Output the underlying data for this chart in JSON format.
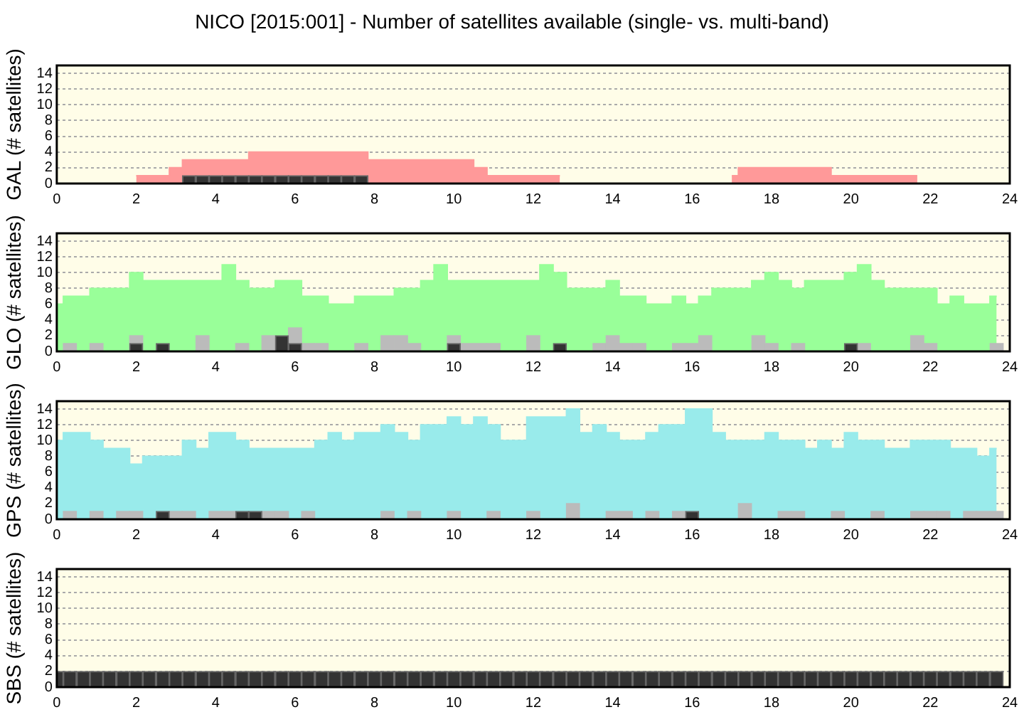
{
  "chart_data": [
    {
      "type": "bar",
      "title": "NICO [2015:001] - Number of satellites available (single- vs. multi-band)",
      "ylabel": "GAL (# satellites)",
      "xlim": [
        0,
        24
      ],
      "xticks": [
        0,
        2,
        4,
        6,
        8,
        10,
        12,
        14,
        16,
        18,
        20,
        22,
        24
      ],
      "ylim": [
        0,
        15
      ],
      "yticks": [
        0,
        2,
        4,
        6,
        8,
        10,
        12,
        14
      ],
      "grid": "y",
      "series": [
        {
          "type": "area",
          "color": "#ff9999",
          "x": [
            2,
            2.33,
            2.67,
            3,
            3.33,
            3.67,
            4,
            4.33,
            4.67,
            5,
            5.33,
            5.67,
            6,
            6.33,
            6.67,
            7,
            7.33,
            7.67,
            8,
            8.33,
            8.67,
            9,
            9.33,
            9.67,
            10,
            10.33,
            10.67,
            11,
            11.33,
            11.67,
            12,
            12.33,
            12.67
          ],
          "values": [
            1,
            1,
            1,
            2,
            3,
            3,
            3,
            3,
            3,
            4,
            4,
            4,
            4,
            4,
            4,
            4,
            4,
            4,
            3,
            3,
            3,
            3,
            3,
            3,
            3,
            3,
            2,
            1,
            1,
            1,
            1,
            1,
            1
          ]
        },
        {
          "type": "area",
          "color": "#ff9999",
          "x": [
            17,
            17.33,
            17.67,
            18,
            18.33,
            18.67,
            19,
            19.33,
            19.67,
            20,
            20.33,
            20.67,
            21,
            21.33,
            21.67
          ],
          "values": [
            1,
            2,
            2,
            2,
            2,
            2,
            2,
            2,
            1,
            1,
            1,
            1,
            1,
            1,
            1
          ]
        },
        {
          "color": "#333333",
          "x": [
            3.33,
            3.67,
            4,
            4.33,
            4.67,
            5,
            5.33,
            5.67,
            6,
            6.33,
            6.67,
            7,
            7.33,
            7.67
          ],
          "values": [
            1,
            1,
            1,
            1,
            1,
            1,
            1,
            1,
            1,
            1,
            1,
            1,
            1,
            1
          ]
        }
      ]
    },
    {
      "type": "bar",
      "ylabel": "GLO (# satellites)",
      "xlim": [
        0,
        24
      ],
      "xticks": [
        0,
        2,
        4,
        6,
        8,
        10,
        12,
        14,
        16,
        18,
        20,
        22,
        24
      ],
      "ylim": [
        0,
        15
      ],
      "yticks": [
        0,
        2,
        4,
        6,
        8,
        10,
        12,
        14
      ],
      "grid": "y",
      "x": [
        0,
        0.33,
        0.67,
        1,
        1.33,
        1.67,
        2,
        2.33,
        2.67,
        3,
        3.33,
        3.67,
        4,
        4.33,
        4.67,
        5,
        5.33,
        5.67,
        6,
        6.33,
        6.67,
        7,
        7.33,
        7.67,
        8,
        8.33,
        8.67,
        9,
        9.33,
        9.67,
        10,
        10.33,
        10.67,
        11,
        11.33,
        11.67,
        12,
        12.33,
        12.67,
        13,
        13.33,
        13.67,
        14,
        14.33,
        14.67,
        15,
        15.33,
        15.67,
        16,
        16.33,
        16.67,
        17,
        17.33,
        17.67,
        18,
        18.33,
        18.67,
        19,
        19.33,
        19.67,
        20,
        20.33,
        20.67,
        21,
        21.33,
        21.67,
        22,
        22.33,
        22.67,
        23,
        23.33,
        23.67
      ],
      "series": [
        {
          "type": "area",
          "color": "#99ff99",
          "values": [
            6,
            7,
            7,
            8,
            8,
            8,
            10,
            9,
            9,
            9,
            9,
            9,
            9,
            11,
            9,
            8,
            8,
            9,
            9,
            7,
            7,
            6,
            6,
            7,
            7,
            7,
            8,
            8,
            9,
            11,
            9,
            9,
            9,
            9,
            9,
            9,
            9,
            11,
            10,
            8,
            8,
            8,
            9,
            7,
            7,
            6,
            6,
            7,
            6,
            7,
            8,
            8,
            8,
            9,
            10,
            9,
            8,
            9,
            9,
            9,
            10,
            11,
            9,
            8,
            8,
            8,
            8,
            6,
            7,
            6,
            6,
            7
          ]
        },
        {
          "color": "#bbbbbb",
          "values": [
            null,
            1,
            null,
            1,
            null,
            null,
            2,
            null,
            null,
            null,
            null,
            2,
            null,
            null,
            1,
            null,
            2,
            null,
            3,
            1,
            1,
            null,
            null,
            1,
            null,
            2,
            2,
            1,
            null,
            null,
            2,
            1,
            1,
            1,
            null,
            null,
            2,
            null,
            null,
            null,
            null,
            1,
            2,
            1,
            1,
            null,
            null,
            1,
            1,
            2,
            null,
            null,
            null,
            2,
            1,
            null,
            1,
            null,
            null,
            null,
            null,
            1,
            null,
            null,
            null,
            2,
            1,
            null,
            null,
            null,
            null,
            1
          ]
        },
        {
          "color": "#333333",
          "values": [
            null,
            null,
            null,
            null,
            null,
            null,
            1,
            null,
            1,
            null,
            null,
            null,
            null,
            null,
            null,
            null,
            null,
            2,
            1,
            null,
            null,
            null,
            null,
            null,
            null,
            null,
            null,
            null,
            null,
            null,
            1,
            null,
            null,
            null,
            null,
            null,
            null,
            null,
            1,
            null,
            null,
            null,
            null,
            null,
            null,
            null,
            null,
            null,
            null,
            null,
            null,
            null,
            null,
            null,
            null,
            null,
            null,
            null,
            null,
            null,
            1,
            null,
            null,
            null,
            null,
            null,
            null,
            null,
            null,
            null,
            null,
            null
          ]
        }
      ]
    },
    {
      "type": "bar",
      "ylabel": "GPS (# satellites)",
      "xlim": [
        0,
        24
      ],
      "xticks": [
        0,
        2,
        4,
        6,
        8,
        10,
        12,
        14,
        16,
        18,
        20,
        22,
        24
      ],
      "ylim": [
        0,
        15
      ],
      "yticks": [
        0,
        2,
        4,
        6,
        8,
        10,
        12,
        14
      ],
      "grid": "y",
      "x": [
        0,
        0.33,
        0.67,
        1,
        1.33,
        1.67,
        2,
        2.33,
        2.67,
        3,
        3.33,
        3.67,
        4,
        4.33,
        4.67,
        5,
        5.33,
        5.67,
        6,
        6.33,
        6.67,
        7,
        7.33,
        7.67,
        8,
        8.33,
        8.67,
        9,
        9.33,
        9.67,
        10,
        10.33,
        10.67,
        11,
        11.33,
        11.67,
        12,
        12.33,
        12.67,
        13,
        13.33,
        13.67,
        14,
        14.33,
        14.67,
        15,
        15.33,
        15.67,
        16,
        16.33,
        16.67,
        17,
        17.33,
        17.67,
        18,
        18.33,
        18.67,
        19,
        19.33,
        19.67,
        20,
        20.33,
        20.67,
        21,
        21.33,
        21.67,
        22,
        22.33,
        22.67,
        23,
        23.33,
        23.67
      ],
      "series": [
        {
          "type": "area",
          "color": "#99ebeb",
          "values": [
            10,
            11,
            11,
            10,
            9,
            9,
            7,
            8,
            8,
            8,
            10,
            9,
            11,
            11,
            10,
            9,
            9,
            9,
            9,
            9,
            10,
            11,
            10,
            11,
            11,
            12,
            11,
            10,
            12,
            12,
            13,
            12,
            13,
            12,
            10,
            10,
            13,
            13,
            13,
            14,
            11,
            12,
            11,
            10,
            10,
            11,
            12,
            12,
            14,
            14,
            11,
            10,
            10,
            10,
            11,
            10,
            10,
            9,
            10,
            9,
            11,
            10,
            10,
            9,
            9,
            10,
            10,
            10,
            9,
            9,
            8,
            9
          ]
        },
        {
          "color": "#bbbbbb",
          "values": [
            null,
            1,
            null,
            1,
            null,
            1,
            1,
            null,
            null,
            1,
            1,
            null,
            1,
            1,
            null,
            null,
            1,
            1,
            null,
            1,
            null,
            null,
            null,
            null,
            null,
            1,
            null,
            1,
            null,
            null,
            1,
            null,
            null,
            1,
            null,
            null,
            1,
            null,
            null,
            2,
            null,
            null,
            1,
            1,
            null,
            1,
            null,
            1,
            null,
            null,
            null,
            null,
            2,
            null,
            null,
            1,
            1,
            null,
            null,
            1,
            null,
            null,
            1,
            null,
            null,
            1,
            1,
            1,
            null,
            1,
            1,
            1
          ]
        },
        {
          "color": "#333333",
          "values": [
            null,
            null,
            null,
            null,
            null,
            null,
            null,
            null,
            1,
            null,
            null,
            null,
            null,
            null,
            1,
            1,
            null,
            null,
            null,
            null,
            null,
            null,
            null,
            null,
            null,
            null,
            null,
            null,
            null,
            null,
            null,
            null,
            null,
            null,
            null,
            null,
            null,
            null,
            null,
            null,
            null,
            null,
            null,
            null,
            null,
            null,
            null,
            null,
            1,
            null,
            null,
            null,
            null,
            null,
            null,
            null,
            null,
            null,
            null,
            null,
            null,
            null,
            null,
            null,
            null,
            null,
            null,
            null,
            null,
            null,
            null,
            null
          ]
        }
      ]
    },
    {
      "type": "bar",
      "ylabel": "SBS (# satellites)",
      "xlim": [
        0,
        24
      ],
      "xticks": [
        0,
        2,
        4,
        6,
        8,
        10,
        12,
        14,
        16,
        18,
        20,
        22,
        24
      ],
      "ylim": [
        0,
        15
      ],
      "yticks": [
        0,
        2,
        4,
        6,
        8,
        10,
        12,
        14
      ],
      "grid": "y",
      "x": [
        0,
        0.33,
        0.67,
        1,
        1.33,
        1.67,
        2,
        2.33,
        2.67,
        3,
        3.33,
        3.67,
        4,
        4.33,
        4.67,
        5,
        5.33,
        5.67,
        6,
        6.33,
        6.67,
        7,
        7.33,
        7.67,
        8,
        8.33,
        8.67,
        9,
        9.33,
        9.67,
        10,
        10.33,
        10.67,
        11,
        11.33,
        11.67,
        12,
        12.33,
        12.67,
        13,
        13.33,
        13.67,
        14,
        14.33,
        14.67,
        15,
        15.33,
        15.67,
        16,
        16.33,
        16.67,
        17,
        17.33,
        17.67,
        18,
        18.33,
        18.67,
        19,
        19.33,
        19.67,
        20,
        20.33,
        20.67,
        21,
        21.33,
        21.67,
        22,
        22.33,
        22.67,
        23,
        23.33,
        23.67
      ],
      "series": [
        {
          "color": "#333333",
          "values": [
            2,
            2,
            2,
            2,
            2,
            2,
            2,
            2,
            2,
            2,
            2,
            2,
            2,
            2,
            2,
            2,
            2,
            2,
            2,
            2,
            2,
            2,
            2,
            2,
            2,
            2,
            2,
            2,
            2,
            2,
            2,
            2,
            2,
            2,
            2,
            2,
            2,
            2,
            2,
            2,
            2,
            2,
            2,
            2,
            2,
            2,
            2,
            2,
            2,
            2,
            2,
            2,
            2,
            2,
            2,
            2,
            2,
            2,
            2,
            2,
            2,
            2,
            2,
            2,
            2,
            2,
            2,
            2,
            2,
            2,
            2,
            2
          ]
        }
      ]
    }
  ]
}
